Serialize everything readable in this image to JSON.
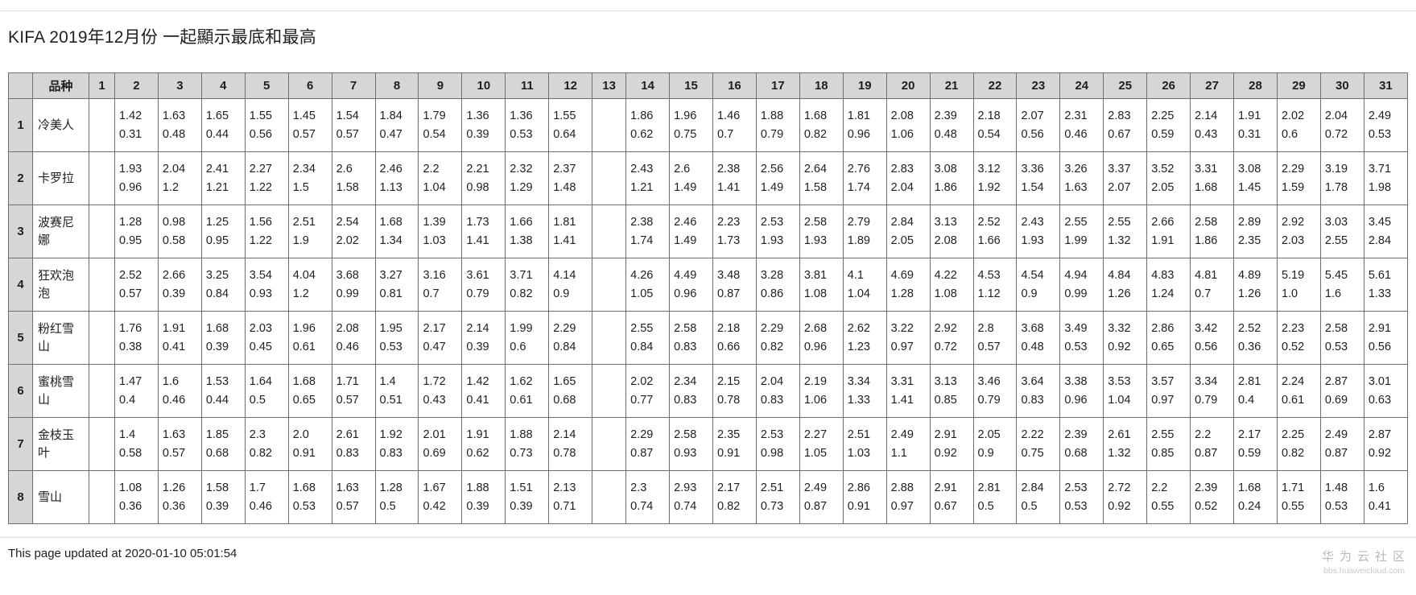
{
  "page": {
    "title": "KIFA 2019年12月份 一起顯示最底和最高",
    "footer": "This page updated at 2020-01-10 05:01:54",
    "watermark_line1": "华为云社区",
    "watermark_line2": "bbs.huaweicloud.com"
  },
  "colors": {
    "header_bg": "#d6d6d6",
    "border": "#6e6e6e",
    "watermark": "#b7bbbf"
  },
  "table": {
    "corner_label": "",
    "variety_header": "品种",
    "day_headers": [
      "1",
      "2",
      "3",
      "4",
      "5",
      "6",
      "7",
      "8",
      "9",
      "10",
      "11",
      "12",
      "13",
      "14",
      "15",
      "16",
      "17",
      "18",
      "19",
      "20",
      "21",
      "22",
      "23",
      "24",
      "25",
      "26",
      "27",
      "28",
      "29",
      "30",
      "31"
    ],
    "rows": [
      {
        "index": "1",
        "name": "冷美人",
        "cells": [
          null,
          [
            "1.42",
            "0.31"
          ],
          [
            "1.63",
            "0.48"
          ],
          [
            "1.65",
            "0.44"
          ],
          [
            "1.55",
            "0.56"
          ],
          [
            "1.45",
            "0.57"
          ],
          [
            "1.54",
            "0.57"
          ],
          [
            "1.84",
            "0.47"
          ],
          [
            "1.79",
            "0.54"
          ],
          [
            "1.36",
            "0.39"
          ],
          [
            "1.36",
            "0.53"
          ],
          [
            "1.55",
            "0.64"
          ],
          null,
          [
            "1.86",
            "0.62"
          ],
          [
            "1.96",
            "0.75"
          ],
          [
            "1.46",
            "0.7"
          ],
          [
            "1.88",
            "0.79"
          ],
          [
            "1.68",
            "0.82"
          ],
          [
            "1.81",
            "0.96"
          ],
          [
            "2.08",
            "1.06"
          ],
          [
            "2.39",
            "0.48"
          ],
          [
            "2.18",
            "0.54"
          ],
          [
            "2.07",
            "0.56"
          ],
          [
            "2.31",
            "0.46"
          ],
          [
            "2.83",
            "0.67"
          ],
          [
            "2.25",
            "0.59"
          ],
          [
            "2.14",
            "0.43"
          ],
          [
            "1.91",
            "0.31"
          ],
          [
            "2.02",
            "0.6"
          ],
          [
            "2.04",
            "0.72"
          ],
          [
            "2.49",
            "0.53"
          ]
        ]
      },
      {
        "index": "2",
        "name": "卡罗拉",
        "cells": [
          null,
          [
            "1.93",
            "0.96"
          ],
          [
            "2.04",
            "1.2"
          ],
          [
            "2.41",
            "1.21"
          ],
          [
            "2.27",
            "1.22"
          ],
          [
            "2.34",
            "1.5"
          ],
          [
            "2.6",
            "1.58"
          ],
          [
            "2.46",
            "1.13"
          ],
          [
            "2.2",
            "1.04"
          ],
          [
            "2.21",
            "0.98"
          ],
          [
            "2.32",
            "1.29"
          ],
          [
            "2.37",
            "1.48"
          ],
          null,
          [
            "2.43",
            "1.21"
          ],
          [
            "2.6",
            "1.49"
          ],
          [
            "2.38",
            "1.41"
          ],
          [
            "2.56",
            "1.49"
          ],
          [
            "2.64",
            "1.58"
          ],
          [
            "2.76",
            "1.74"
          ],
          [
            "2.83",
            "2.04"
          ],
          [
            "3.08",
            "1.86"
          ],
          [
            "3.12",
            "1.92"
          ],
          [
            "3.36",
            "1.54"
          ],
          [
            "3.26",
            "1.63"
          ],
          [
            "3.37",
            "2.07"
          ],
          [
            "3.52",
            "2.05"
          ],
          [
            "3.31",
            "1.68"
          ],
          [
            "3.08",
            "1.45"
          ],
          [
            "2.29",
            "1.59"
          ],
          [
            "3.19",
            "1.78"
          ],
          [
            "3.71",
            "1.98"
          ]
        ]
      },
      {
        "index": "3",
        "name": "波赛尼娜",
        "cells": [
          null,
          [
            "1.28",
            "0.95"
          ],
          [
            "0.98",
            "0.58"
          ],
          [
            "1.25",
            "0.95"
          ],
          [
            "1.56",
            "1.22"
          ],
          [
            "2.51",
            "1.9"
          ],
          [
            "2.54",
            "2.02"
          ],
          [
            "1.68",
            "1.34"
          ],
          [
            "1.39",
            "1.03"
          ],
          [
            "1.73",
            "1.41"
          ],
          [
            "1.66",
            "1.38"
          ],
          [
            "1.81",
            "1.41"
          ],
          null,
          [
            "2.38",
            "1.74"
          ],
          [
            "2.46",
            "1.49"
          ],
          [
            "2.23",
            "1.73"
          ],
          [
            "2.53",
            "1.93"
          ],
          [
            "2.58",
            "1.93"
          ],
          [
            "2.79",
            "1.89"
          ],
          [
            "2.84",
            "2.05"
          ],
          [
            "3.13",
            "2.08"
          ],
          [
            "2.52",
            "1.66"
          ],
          [
            "2.43",
            "1.93"
          ],
          [
            "2.55",
            "1.99"
          ],
          [
            "2.55",
            "1.32"
          ],
          [
            "2.66",
            "1.91"
          ],
          [
            "2.58",
            "1.86"
          ],
          [
            "2.89",
            "2.35"
          ],
          [
            "2.92",
            "2.03"
          ],
          [
            "3.03",
            "2.55"
          ],
          [
            "3.45",
            "2.84"
          ]
        ]
      },
      {
        "index": "4",
        "name": "狂欢泡泡",
        "cells": [
          null,
          [
            "2.52",
            "0.57"
          ],
          [
            "2.66",
            "0.39"
          ],
          [
            "3.25",
            "0.84"
          ],
          [
            "3.54",
            "0.93"
          ],
          [
            "4.04",
            "1.2"
          ],
          [
            "3.68",
            "0.99"
          ],
          [
            "3.27",
            "0.81"
          ],
          [
            "3.16",
            "0.7"
          ],
          [
            "3.61",
            "0.79"
          ],
          [
            "3.71",
            "0.82"
          ],
          [
            "4.14",
            "0.9"
          ],
          null,
          [
            "4.26",
            "1.05"
          ],
          [
            "4.49",
            "0.96"
          ],
          [
            "3.48",
            "0.87"
          ],
          [
            "3.28",
            "0.86"
          ],
          [
            "3.81",
            "1.08"
          ],
          [
            "4.1",
            "1.04"
          ],
          [
            "4.69",
            "1.28"
          ],
          [
            "4.22",
            "1.08"
          ],
          [
            "4.53",
            "1.12"
          ],
          [
            "4.54",
            "0.9"
          ],
          [
            "4.94",
            "0.99"
          ],
          [
            "4.84",
            "1.26"
          ],
          [
            "4.83",
            "1.24"
          ],
          [
            "4.81",
            "0.7"
          ],
          [
            "4.89",
            "1.26"
          ],
          [
            "5.19",
            "1.0"
          ],
          [
            "5.45",
            "1.6"
          ],
          [
            "5.61",
            "1.33"
          ]
        ]
      },
      {
        "index": "5",
        "name": "粉红雪山",
        "cells": [
          null,
          [
            "1.76",
            "0.38"
          ],
          [
            "1.91",
            "0.41"
          ],
          [
            "1.68",
            "0.39"
          ],
          [
            "2.03",
            "0.45"
          ],
          [
            "1.96",
            "0.61"
          ],
          [
            "2.08",
            "0.46"
          ],
          [
            "1.95",
            "0.53"
          ],
          [
            "2.17",
            "0.47"
          ],
          [
            "2.14",
            "0.39"
          ],
          [
            "1.99",
            "0.6"
          ],
          [
            "2.29",
            "0.84"
          ],
          null,
          [
            "2.55",
            "0.84"
          ],
          [
            "2.58",
            "0.83"
          ],
          [
            "2.18",
            "0.66"
          ],
          [
            "2.29",
            "0.82"
          ],
          [
            "2.68",
            "0.96"
          ],
          [
            "2.62",
            "1.23"
          ],
          [
            "3.22",
            "0.97"
          ],
          [
            "2.92",
            "0.72"
          ],
          [
            "2.8",
            "0.57"
          ],
          [
            "3.68",
            "0.48"
          ],
          [
            "3.49",
            "0.53"
          ],
          [
            "3.32",
            "0.92"
          ],
          [
            "2.86",
            "0.65"
          ],
          [
            "3.42",
            "0.56"
          ],
          [
            "2.52",
            "0.36"
          ],
          [
            "2.23",
            "0.52"
          ],
          [
            "2.58",
            "0.53"
          ],
          [
            "2.91",
            "0.56"
          ]
        ]
      },
      {
        "index": "6",
        "name": "蜜桃雪山",
        "cells": [
          null,
          [
            "1.47",
            "0.4"
          ],
          [
            "1.6",
            "0.46"
          ],
          [
            "1.53",
            "0.44"
          ],
          [
            "1.64",
            "0.5"
          ],
          [
            "1.68",
            "0.65"
          ],
          [
            "1.71",
            "0.57"
          ],
          [
            "1.4",
            "0.51"
          ],
          [
            "1.72",
            "0.43"
          ],
          [
            "1.42",
            "0.41"
          ],
          [
            "1.62",
            "0.61"
          ],
          [
            "1.65",
            "0.68"
          ],
          null,
          [
            "2.02",
            "0.77"
          ],
          [
            "2.34",
            "0.83"
          ],
          [
            "2.15",
            "0.78"
          ],
          [
            "2.04",
            "0.83"
          ],
          [
            "2.19",
            "1.06"
          ],
          [
            "3.34",
            "1.33"
          ],
          [
            "3.31",
            "1.41"
          ],
          [
            "3.13",
            "0.85"
          ],
          [
            "3.46",
            "0.79"
          ],
          [
            "3.64",
            "0.83"
          ],
          [
            "3.38",
            "0.96"
          ],
          [
            "3.53",
            "1.04"
          ],
          [
            "3.57",
            "0.97"
          ],
          [
            "3.34",
            "0.79"
          ],
          [
            "2.81",
            "0.4"
          ],
          [
            "2.24",
            "0.61"
          ],
          [
            "2.87",
            "0.69"
          ],
          [
            "3.01",
            "0.63"
          ]
        ]
      },
      {
        "index": "7",
        "name": "金枝玉叶",
        "cells": [
          null,
          [
            "1.4",
            "0.58"
          ],
          [
            "1.63",
            "0.57"
          ],
          [
            "1.85",
            "0.68"
          ],
          [
            "2.3",
            "0.82"
          ],
          [
            "2.0",
            "0.91"
          ],
          [
            "2.61",
            "0.83"
          ],
          [
            "1.92",
            "0.83"
          ],
          [
            "2.01",
            "0.69"
          ],
          [
            "1.91",
            "0.62"
          ],
          [
            "1.88",
            "0.73"
          ],
          [
            "2.14",
            "0.78"
          ],
          null,
          [
            "2.29",
            "0.87"
          ],
          [
            "2.58",
            "0.93"
          ],
          [
            "2.35",
            "0.91"
          ],
          [
            "2.53",
            "0.98"
          ],
          [
            "2.27",
            "1.05"
          ],
          [
            "2.51",
            "1.03"
          ],
          [
            "2.49",
            "1.1"
          ],
          [
            "2.91",
            "0.92"
          ],
          [
            "2.05",
            "0.9"
          ],
          [
            "2.22",
            "0.75"
          ],
          [
            "2.39",
            "0.68"
          ],
          [
            "2.61",
            "1.32"
          ],
          [
            "2.55",
            "0.85"
          ],
          [
            "2.2",
            "0.87"
          ],
          [
            "2.17",
            "0.59"
          ],
          [
            "2.25",
            "0.82"
          ],
          [
            "2.49",
            "0.87"
          ],
          [
            "2.87",
            "0.92"
          ]
        ]
      },
      {
        "index": "8",
        "name": "雪山",
        "cells": [
          null,
          [
            "1.08",
            "0.36"
          ],
          [
            "1.26",
            "0.36"
          ],
          [
            "1.58",
            "0.39"
          ],
          [
            "1.7",
            "0.46"
          ],
          [
            "1.68",
            "0.53"
          ],
          [
            "1.63",
            "0.57"
          ],
          [
            "1.28",
            "0.5"
          ],
          [
            "1.67",
            "0.42"
          ],
          [
            "1.88",
            "0.39"
          ],
          [
            "1.51",
            "0.39"
          ],
          [
            "2.13",
            "0.71"
          ],
          null,
          [
            "2.3",
            "0.74"
          ],
          [
            "2.93",
            "0.74"
          ],
          [
            "2.17",
            "0.82"
          ],
          [
            "2.51",
            "0.73"
          ],
          [
            "2.49",
            "0.87"
          ],
          [
            "2.86",
            "0.91"
          ],
          [
            "2.88",
            "0.97"
          ],
          [
            "2.91",
            "0.67"
          ],
          [
            "2.81",
            "0.5"
          ],
          [
            "2.84",
            "0.5"
          ],
          [
            "2.53",
            "0.53"
          ],
          [
            "2.72",
            "0.92"
          ],
          [
            "2.2",
            "0.55"
          ],
          [
            "2.39",
            "0.52"
          ],
          [
            "1.68",
            "0.24"
          ],
          [
            "1.71",
            "0.55"
          ],
          [
            "1.48",
            "0.53"
          ],
          [
            "1.6",
            "0.41"
          ]
        ]
      }
    ]
  }
}
